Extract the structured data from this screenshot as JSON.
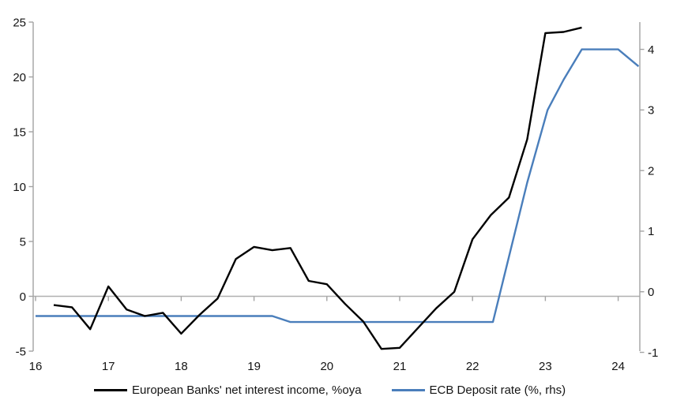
{
  "chart_data": {
    "type": "line",
    "title": "",
    "background": "#ffffff",
    "colors": {
      "axis": "#a3a3a3",
      "zero_line": "#b0b0b0",
      "black_series": "#000000",
      "blue_series": "#4a7ebb",
      "text": "#141414"
    },
    "x_axis": {
      "ticks": [
        16,
        17,
        18,
        19,
        20,
        21,
        22,
        23,
        24
      ],
      "range": [
        16,
        24.3
      ],
      "label": ""
    },
    "left_axis": {
      "ticks": [
        -5,
        0,
        5,
        10,
        15,
        20,
        25
      ],
      "range": [
        -5,
        25
      ],
      "label": ""
    },
    "right_axis": {
      "ticks": [
        -1,
        0,
        1,
        2,
        3,
        4
      ],
      "range": [
        -0.98,
        4.45
      ],
      "label": ""
    },
    "grid": false,
    "legend_position": "bottom",
    "series": [
      {
        "name": "European Banks' net interest income, %oya",
        "axis": "left",
        "color": "#000000",
        "width": 2.4,
        "points": [
          [
            16.25,
            -0.8
          ],
          [
            16.5,
            -1.0
          ],
          [
            16.75,
            -3.0
          ],
          [
            17.0,
            0.9
          ],
          [
            17.25,
            -1.2
          ],
          [
            17.5,
            -1.8
          ],
          [
            17.75,
            -1.5
          ],
          [
            18.0,
            -3.4
          ],
          [
            18.25,
            -1.7
          ],
          [
            18.5,
            -0.2
          ],
          [
            18.75,
            3.4
          ],
          [
            19.0,
            4.5
          ],
          [
            19.25,
            4.2
          ],
          [
            19.5,
            4.4
          ],
          [
            19.75,
            1.4
          ],
          [
            20.0,
            1.1
          ],
          [
            20.25,
            -0.7
          ],
          [
            20.5,
            -2.3
          ],
          [
            20.75,
            -4.8
          ],
          [
            21.0,
            -4.7
          ],
          [
            21.25,
            -2.9
          ],
          [
            21.5,
            -1.1
          ],
          [
            21.75,
            0.4
          ],
          [
            22.0,
            5.2
          ],
          [
            22.25,
            7.4
          ],
          [
            22.5,
            9.0
          ],
          [
            22.75,
            14.3
          ],
          [
            23.0,
            24.0
          ],
          [
            23.25,
            24.1
          ],
          [
            23.5,
            24.5
          ]
        ]
      },
      {
        "name": "ECB Deposit rate (%, rhs)",
        "axis": "right",
        "color": "#4a7ebb",
        "width": 2.4,
        "points": [
          [
            16.0,
            -0.4
          ],
          [
            19.25,
            -0.4
          ],
          [
            19.5,
            -0.5
          ],
          [
            22.28,
            -0.5
          ],
          [
            22.75,
            1.8
          ],
          [
            23.03,
            3.0
          ],
          [
            23.25,
            3.5
          ],
          [
            23.5,
            4.0
          ],
          [
            24.0,
            4.0
          ],
          [
            24.28,
            3.72
          ]
        ]
      }
    ]
  }
}
